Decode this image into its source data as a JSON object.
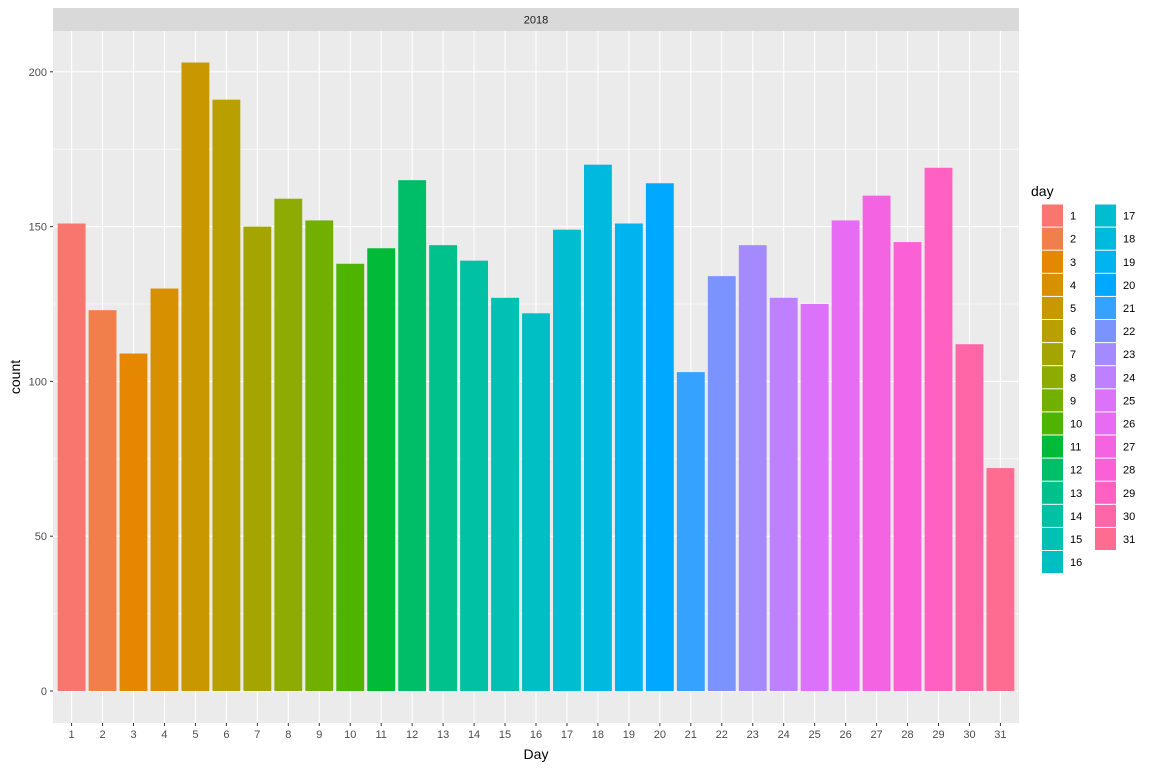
{
  "chart_data": {
    "type": "bar",
    "facet_label": "2018",
    "xlabel": "Day",
    "ylabel": "count",
    "legend_title": "day",
    "legend_position": "right",
    "ylim": [
      -10,
      215
    ],
    "yticks": [
      0,
      50,
      100,
      150,
      200
    ],
    "grid": true,
    "categories": [
      "1",
      "2",
      "3",
      "4",
      "5",
      "6",
      "7",
      "8",
      "9",
      "10",
      "11",
      "12",
      "13",
      "14",
      "15",
      "16",
      "17",
      "18",
      "19",
      "20",
      "21",
      "22",
      "23",
      "24",
      "25",
      "26",
      "27",
      "28",
      "29",
      "30",
      "31"
    ],
    "values": [
      151,
      123,
      109,
      130,
      203,
      191,
      150,
      159,
      152,
      138,
      143,
      165,
      144,
      139,
      127,
      122,
      149,
      170,
      151,
      164,
      103,
      134,
      144,
      127,
      125,
      152,
      160,
      145,
      169,
      112,
      72
    ],
    "colors": [
      "#F8766D",
      "#F07F4B",
      "#E58700",
      "#D79000",
      "#C99800",
      "#B99F00",
      "#A4A500",
      "#8DAB00",
      "#72B000",
      "#4FB400",
      "#00BA38",
      "#00BE67",
      "#00C08B",
      "#00C1A3",
      "#00C1B3",
      "#00BFC4",
      "#00BDD0",
      "#00BADE",
      "#00B4EF",
      "#00A9FF",
      "#35A2FF",
      "#7B93FF",
      "#A58AFF",
      "#BF80FF",
      "#DC71FA",
      "#E76BF3",
      "#F464E2",
      "#FB61D7",
      "#FF61C3",
      "#FF66A8",
      "#FF6C91"
    ]
  }
}
